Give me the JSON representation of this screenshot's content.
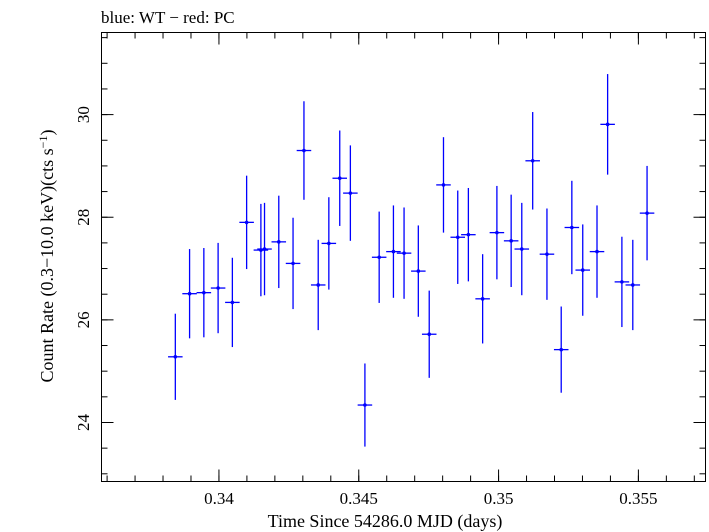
{
  "chart_data": {
    "type": "scatter",
    "title": "blue: WT − red: PC",
    "xlabel": "Time Since 54286.0 MJD (days)",
    "ylabel_main": "Count Rate (0.3−10.0 keV)(cts s",
    "ylabel_sup": "−1",
    "ylabel_close": ")",
    "xlim": [
      0.3358,
      0.3574
    ],
    "ylim": [
      22.85,
      31.6
    ],
    "x_ticks": [
      {
        "value": 0.34,
        "label": "0.34"
      },
      {
        "value": 0.345,
        "label": "0.345"
      },
      {
        "value": 0.35,
        "label": "0.35"
      },
      {
        "value": 0.355,
        "label": "0.355"
      }
    ],
    "y_ticks": [
      {
        "value": 24,
        "label": "24"
      },
      {
        "value": 26,
        "label": "26"
      },
      {
        "value": 28,
        "label": "28"
      },
      {
        "value": 30,
        "label": "30"
      }
    ],
    "x_minor_step": 0.001,
    "y_minor_step": 0.5,
    "series": [
      {
        "color": "#0000ff",
        "xerr": 0.00026,
        "points": [
          {
            "x": 0.33844,
            "y": 25.28,
            "yerr": 0.84
          },
          {
            "x": 0.33895,
            "y": 26.51,
            "yerr": 0.87
          },
          {
            "x": 0.33946,
            "y": 26.53,
            "yerr": 0.87
          },
          {
            "x": 0.33997,
            "y": 26.62,
            "yerr": 0.88
          },
          {
            "x": 0.34048,
            "y": 26.34,
            "yerr": 0.87
          },
          {
            "x": 0.34099,
            "y": 27.9,
            "yerr": 0.91
          },
          {
            "x": 0.3415,
            "y": 27.36,
            "yerr": 0.9
          },
          {
            "x": 0.34163,
            "y": 27.38,
            "yerr": 0.9
          },
          {
            "x": 0.34214,
            "y": 27.52,
            "yerr": 0.9
          },
          {
            "x": 0.34265,
            "y": 27.1,
            "yerr": 0.89
          },
          {
            "x": 0.34304,
            "y": 29.3,
            "yerr": 0.96
          },
          {
            "x": 0.34355,
            "y": 26.68,
            "yerr": 0.88
          },
          {
            "x": 0.34393,
            "y": 27.49,
            "yerr": 0.9
          },
          {
            "x": 0.34432,
            "y": 28.76,
            "yerr": 0.93
          },
          {
            "x": 0.3447,
            "y": 28.47,
            "yerr": 0.93
          },
          {
            "x": 0.34522,
            "y": 24.34,
            "yerr": 0.81
          },
          {
            "x": 0.34573,
            "y": 27.22,
            "yerr": 0.89
          },
          {
            "x": 0.34624,
            "y": 27.33,
            "yerr": 0.9
          },
          {
            "x": 0.34662,
            "y": 27.3,
            "yerr": 0.89
          },
          {
            "x": 0.34713,
            "y": 26.95,
            "yerr": 0.89
          },
          {
            "x": 0.34752,
            "y": 25.72,
            "yerr": 0.85
          },
          {
            "x": 0.34803,
            "y": 28.63,
            "yerr": 0.93
          },
          {
            "x": 0.34854,
            "y": 27.61,
            "yerr": 0.91
          },
          {
            "x": 0.34892,
            "y": 27.66,
            "yerr": 0.91
          },
          {
            "x": 0.34943,
            "y": 26.41,
            "yerr": 0.87
          },
          {
            "x": 0.34994,
            "y": 27.7,
            "yerr": 0.91
          },
          {
            "x": 0.35045,
            "y": 27.54,
            "yerr": 0.9
          },
          {
            "x": 0.35083,
            "y": 27.38,
            "yerr": 0.9
          },
          {
            "x": 0.35122,
            "y": 29.1,
            "yerr": 0.95
          },
          {
            "x": 0.35173,
            "y": 27.28,
            "yerr": 0.89
          },
          {
            "x": 0.35224,
            "y": 25.42,
            "yerr": 0.84
          },
          {
            "x": 0.35262,
            "y": 27.8,
            "yerr": 0.91
          },
          {
            "x": 0.35301,
            "y": 26.97,
            "yerr": 0.89
          },
          {
            "x": 0.35352,
            "y": 27.33,
            "yerr": 0.9
          },
          {
            "x": 0.3539,
            "y": 29.81,
            "yerr": 0.98
          },
          {
            "x": 0.35441,
            "y": 26.74,
            "yerr": 0.88
          },
          {
            "x": 0.3548,
            "y": 26.68,
            "yerr": 0.88
          },
          {
            "x": 0.35531,
            "y": 28.08,
            "yerr": 0.92
          }
        ]
      }
    ]
  }
}
